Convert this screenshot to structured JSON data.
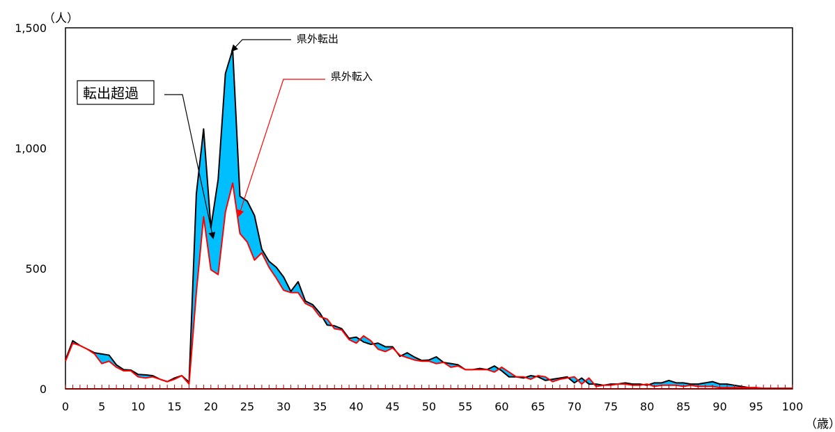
{
  "chart_data": {
    "type": "area",
    "y_unit": "（人）",
    "x_unit": "（歳）",
    "xlim": [
      0,
      100
    ],
    "ylim": [
      0,
      1500
    ],
    "x_ticks": [
      0,
      5,
      10,
      15,
      20,
      25,
      30,
      35,
      40,
      45,
      50,
      55,
      60,
      65,
      70,
      75,
      80,
      85,
      90,
      95,
      100
    ],
    "y_ticks": [
      0,
      500,
      1000,
      1500
    ],
    "y_tick_labels": [
      "0",
      "500",
      "1,000",
      "1,500"
    ],
    "x_tick_labels": [
      "0",
      "5",
      "10",
      "15",
      "20",
      "25",
      "30",
      "35",
      "40",
      "45",
      "50",
      "55",
      "60",
      "65",
      "70",
      "75",
      "80",
      "85",
      "90",
      "95",
      "100"
    ],
    "fill_color": "#00bfff",
    "series": [
      {
        "name": "県外転出",
        "color": "#000000",
        "x": [
          0,
          1,
          2,
          3,
          4,
          5,
          6,
          7,
          8,
          9,
          10,
          11,
          12,
          13,
          14,
          15,
          16,
          17,
          18,
          19,
          20,
          21,
          22,
          23,
          24,
          25,
          26,
          27,
          28,
          29,
          30,
          31,
          32,
          33,
          34,
          35,
          36,
          37,
          38,
          39,
          40,
          41,
          42,
          43,
          44,
          45,
          46,
          47,
          48,
          49,
          50,
          51,
          52,
          53,
          54,
          55,
          56,
          57,
          58,
          59,
          60,
          61,
          62,
          63,
          64,
          65,
          66,
          67,
          68,
          69,
          70,
          71,
          72,
          73,
          74,
          75,
          76,
          77,
          78,
          79,
          80,
          81,
          82,
          83,
          84,
          85,
          86,
          87,
          88,
          89,
          90,
          91,
          92,
          93,
          94,
          95,
          96,
          97,
          98,
          99,
          100
        ],
        "values": [
          120,
          200,
          180,
          165,
          150,
          145,
          140,
          100,
          80,
          78,
          60,
          58,
          55,
          40,
          30,
          45,
          55,
          28,
          810,
          1080,
          670,
          870,
          1310,
          1410,
          800,
          780,
          720,
          580,
          530,
          505,
          465,
          405,
          445,
          365,
          350,
          315,
          265,
          262,
          250,
          210,
          215,
          195,
          185,
          190,
          175,
          175,
          135,
          150,
          132,
          118,
          120,
          133,
          110,
          105,
          100,
          80,
          80,
          85,
          80,
          95,
          75,
          50,
          50,
          45,
          55,
          50,
          35,
          40,
          45,
          50,
          25,
          45,
          20,
          20,
          15,
          20,
          20,
          25,
          20,
          20,
          15,
          25,
          25,
          35,
          25,
          25,
          20,
          20,
          25,
          30,
          20,
          20,
          15,
          10,
          5,
          5,
          2,
          2,
          2,
          2,
          2
        ]
      },
      {
        "name": "県外転入",
        "color": "#ff0000",
        "x": [
          0,
          1,
          2,
          3,
          4,
          5,
          6,
          7,
          8,
          9,
          10,
          11,
          12,
          13,
          14,
          15,
          16,
          17,
          18,
          19,
          20,
          21,
          22,
          23,
          24,
          25,
          26,
          27,
          28,
          29,
          30,
          31,
          32,
          33,
          34,
          35,
          36,
          37,
          38,
          39,
          40,
          41,
          42,
          43,
          44,
          45,
          46,
          47,
          48,
          49,
          50,
          51,
          52,
          53,
          54,
          55,
          56,
          57,
          58,
          59,
          60,
          61,
          62,
          63,
          64,
          65,
          66,
          67,
          68,
          69,
          70,
          71,
          72,
          73,
          74,
          75,
          76,
          77,
          78,
          79,
          80,
          81,
          82,
          83,
          84,
          85,
          86,
          87,
          88,
          89,
          90,
          91,
          92,
          93,
          94,
          95,
          96,
          97,
          98,
          99,
          100
        ],
        "values": [
          115,
          190,
          180,
          165,
          145,
          105,
          115,
          90,
          75,
          75,
          50,
          45,
          50,
          40,
          30,
          40,
          55,
          20,
          400,
          715,
          495,
          475,
          735,
          855,
          645,
          610,
          535,
          565,
          505,
          460,
          410,
          400,
          400,
          355,
          340,
          300,
          290,
          250,
          245,
          205,
          190,
          220,
          200,
          165,
          155,
          170,
          140,
          130,
          120,
          115,
          115,
          105,
          110,
          90,
          95,
          80,
          80,
          80,
          80,
          70,
          90,
          70,
          50,
          50,
          40,
          55,
          50,
          30,
          40,
          45,
          50,
          20,
          45,
          10,
          15,
          15,
          20,
          20,
          15,
          15,
          20,
          10,
          15,
          15,
          15,
          10,
          15,
          10,
          10,
          10,
          5,
          5,
          5,
          5,
          5,
          5,
          2,
          2,
          2,
          2,
          2
        ]
      }
    ],
    "annotations": {
      "outflow": "県外転出",
      "inflow": "県外転入",
      "excess": "転出超過"
    }
  }
}
